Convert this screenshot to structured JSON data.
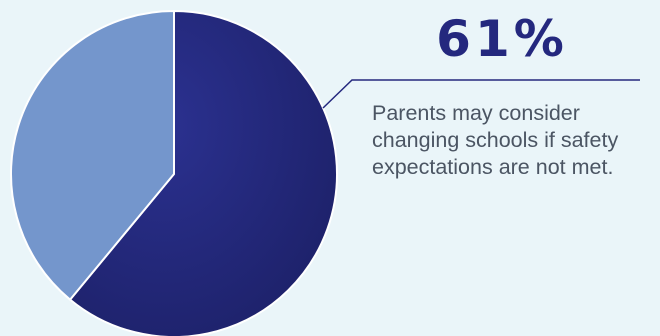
{
  "chart_data": {
    "type": "pie",
    "slices": [
      {
        "label": "",
        "value": 61,
        "color": "#24287e"
      },
      {
        "label": "",
        "value": 39,
        "color": "#7496cc"
      }
    ]
  },
  "callout": {
    "value_text": "61%",
    "caption": "Parents may consider changing schools if safety expectations are not met."
  },
  "colors": {
    "background": "#eaf5f9",
    "accent": "#24287e",
    "secondary": "#7496cc",
    "text": "#4b5563",
    "leader_line": "#24287e"
  }
}
